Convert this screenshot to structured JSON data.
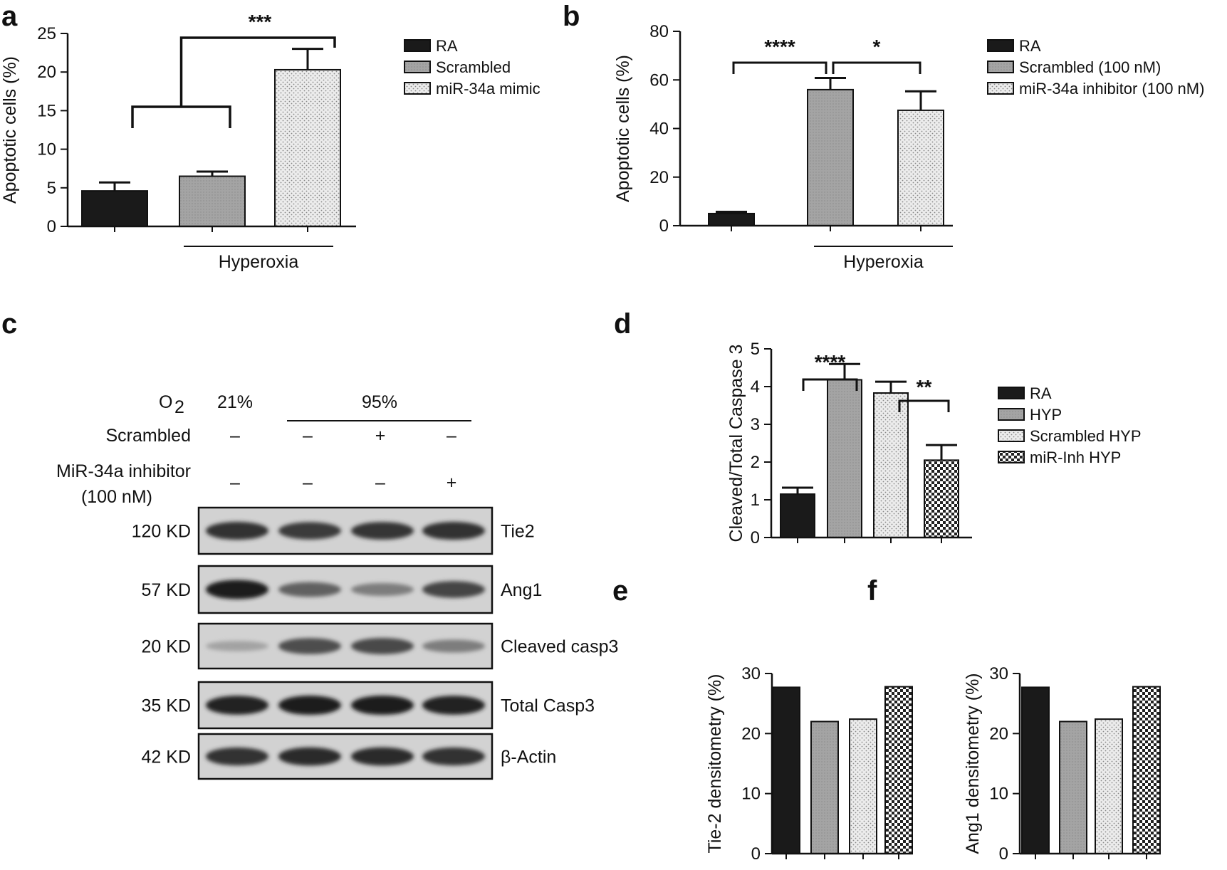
{
  "panels": {
    "a": "a",
    "b": "b",
    "c": "c",
    "d": "d",
    "e": "e",
    "f": "f"
  },
  "colors": {
    "black": "#1a1a1a",
    "gray": "#9a9a9a",
    "dotted": "#e0e0e0",
    "checker": "#222222"
  },
  "chart_data": [
    {
      "panel": "a",
      "type": "bar",
      "categories": [
        "RA",
        "Scrambled",
        "miR-34a mimic"
      ],
      "values": [
        4.6,
        6.5,
        20.3
      ],
      "errors": [
        1.1,
        0.6,
        2.7
      ],
      "fills": [
        "black",
        "gray",
        "dotted"
      ],
      "ylabel": "Apoptotic cells (%)",
      "ylim": [
        0,
        25
      ],
      "yticks": [
        0,
        5,
        10,
        15,
        20,
        25
      ],
      "group_label": "Hyperoxia",
      "legend": [
        "RA",
        "Scrambled",
        "miR-34a mimic"
      ],
      "annotations": [
        "***"
      ]
    },
    {
      "panel": "b",
      "type": "bar",
      "categories": [
        "RA",
        "Scrambled (100 nM)",
        "miR-34a inhibitor (100 nM)"
      ],
      "values": [
        5.0,
        56.0,
        47.5
      ],
      "errors": [
        0.7,
        4.8,
        7.8
      ],
      "fills": [
        "black",
        "gray",
        "dotted"
      ],
      "ylabel": "Apoptotic cells (%)",
      "ylim": [
        0,
        80
      ],
      "yticks": [
        0,
        20,
        40,
        60,
        80
      ],
      "group_label": "Hyperoxia",
      "legend": [
        "RA",
        "Scrambled (100 nM)",
        "miR-34a inhibitor (100 nM)"
      ],
      "annotations": [
        "****",
        "*"
      ]
    },
    {
      "panel": "d",
      "type": "bar",
      "categories": [
        "RA",
        "HYP",
        "Scrambled HYP",
        "miR-Inh HYP"
      ],
      "values": [
        1.15,
        4.18,
        3.83,
        2.05
      ],
      "errors": [
        0.17,
        0.42,
        0.3,
        0.4
      ],
      "fills": [
        "black",
        "gray",
        "dotted",
        "checker"
      ],
      "ylabel": "Cleaved/Total Caspase 3",
      "ylim": [
        0,
        5
      ],
      "yticks": [
        0,
        1,
        2,
        3,
        4,
        5
      ],
      "legend": [
        "RA",
        "HYP",
        "Scrambled HYP",
        "miR-Inh HYP"
      ],
      "annotations": [
        "****",
        "**"
      ]
    },
    {
      "panel": "e",
      "type": "bar",
      "categories": [
        "RA",
        "HYP",
        "Scrambled HYP",
        "miR-Inh HYP"
      ],
      "values": [
        27.7,
        22.0,
        22.4,
        27.8
      ],
      "fills": [
        "black",
        "gray",
        "dotted",
        "checker"
      ],
      "ylabel": "Tie-2 densitometry (%)",
      "ylim": [
        0,
        30
      ],
      "yticks": [
        0,
        10,
        20,
        30
      ]
    },
    {
      "panel": "f",
      "type": "bar",
      "categories": [
        "RA",
        "HYP",
        "Scrambled HYP",
        "miR-Inh HYP"
      ],
      "values": [
        27.7,
        22.0,
        22.4,
        27.8
      ],
      "fills": [
        "black",
        "gray",
        "dotted",
        "checker"
      ],
      "ylabel": "Ang1 densitometry (%)",
      "ylim": [
        0,
        30
      ],
      "yticks": [
        0,
        10,
        20,
        30
      ]
    }
  ],
  "western_blot": {
    "o2_label": "O",
    "o2_sub": "2",
    "o2_values": [
      "21%",
      "95%"
    ],
    "rows": [
      {
        "label": "Scrambled",
        "signs": [
          "–",
          "–",
          "+",
          "–"
        ]
      },
      {
        "label": "MiR-34a inhibitor",
        "label2": "(100 nM)",
        "signs": [
          "–",
          "–",
          "–",
          "+"
        ]
      }
    ],
    "bands": [
      {
        "kd": "120 KD",
        "protein": "Tie2",
        "intensity": [
          0.85,
          0.8,
          0.82,
          0.85
        ]
      },
      {
        "kd": "57 KD",
        "protein": "Ang1",
        "intensity": [
          0.95,
          0.6,
          0.45,
          0.75
        ]
      },
      {
        "kd": "20 KD",
        "protein": "Cleaved casp3",
        "intensity": [
          0.25,
          0.7,
          0.72,
          0.45
        ]
      },
      {
        "kd": "35 KD",
        "protein": "Total Casp3",
        "intensity": [
          0.92,
          0.95,
          0.95,
          0.92
        ]
      },
      {
        "kd": "42 KD",
        "protein": "β-Actin",
        "intensity": [
          0.85,
          0.88,
          0.88,
          0.85
        ]
      }
    ]
  }
}
